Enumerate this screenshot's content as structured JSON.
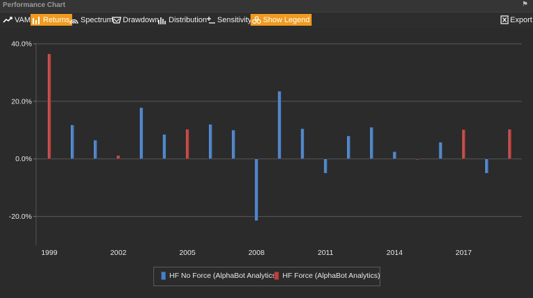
{
  "window": {
    "title": "Performance Chart"
  },
  "toolbar": {
    "vami": "VAMI",
    "returns": "Returns",
    "spectrum": "Spectrum",
    "drawdown": "Drawdown",
    "distribution": "Distribution",
    "sensitivity": "Sensitivity",
    "show_legend": "Show Legend",
    "export": "Export"
  },
  "colors": {
    "accent": "#f19a1e",
    "series_blue": "#4a7fc1",
    "series_red": "#c0403c",
    "background": "#2b2b2b"
  },
  "chart_data": {
    "type": "bar",
    "grid": true,
    "legend_position": "bottom",
    "ylim": [
      -30,
      40
    ],
    "yticks": [
      -20,
      0,
      20,
      40
    ],
    "ytick_labels": [
      "-20.0%",
      "0.0%",
      "20.0%",
      "40.0%"
    ],
    "xtick_labels": [
      "1999",
      "2002",
      "2005",
      "2008",
      "2011",
      "2014",
      "2017"
    ],
    "series": [
      {
        "name": "HF No Force (AlphaBot Analytics)",
        "color": "#4a7fc1",
        "points": [
          {
            "x": 2000,
            "y": 11.8
          },
          {
            "x": 2001,
            "y": 6.5
          },
          {
            "x": 2003,
            "y": 17.8
          },
          {
            "x": 2004,
            "y": 8.5
          },
          {
            "x": 2006,
            "y": 12.0
          },
          {
            "x": 2007,
            "y": 10.0
          },
          {
            "x": 2008,
            "y": -21.5
          },
          {
            "x": 2009,
            "y": 23.5
          },
          {
            "x": 2010,
            "y": 10.5
          },
          {
            "x": 2011,
            "y": -5.0
          },
          {
            "x": 2012,
            "y": 8.0
          },
          {
            "x": 2013,
            "y": 11.0
          },
          {
            "x": 2014,
            "y": 2.5
          },
          {
            "x": 2016,
            "y": 5.8
          },
          {
            "x": 2018,
            "y": -5.0
          }
        ]
      },
      {
        "name": "HF Force (AlphaBot Analytics)",
        "color": "#c0403c",
        "points": [
          {
            "x": 1999,
            "y": 36.5
          },
          {
            "x": 2002,
            "y": 1.2
          },
          {
            "x": 2005,
            "y": 10.3
          },
          {
            "x": 2015,
            "y": -0.3
          },
          {
            "x": 2017,
            "y": 10.2
          },
          {
            "x": 2019,
            "y": 10.3
          }
        ]
      }
    ]
  }
}
